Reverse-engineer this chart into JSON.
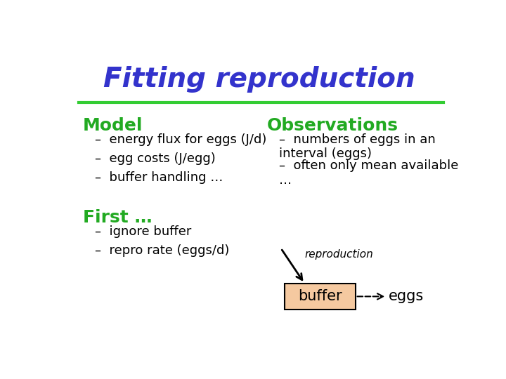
{
  "title": "Fitting reproduction",
  "title_color": "#3333cc",
  "title_fontstyle": "italic",
  "title_fontsize": 28,
  "line_color": "#33cc33",
  "model_header": "Model",
  "model_header_color": "#22aa22",
  "model_header_fontsize": 18,
  "model_items": [
    "energy flux for eggs (J/d)",
    "egg costs (J/egg)",
    "buffer handling …"
  ],
  "obs_header": "Observations",
  "obs_header_color": "#22aa22",
  "obs_header_fontsize": 18,
  "obs_items": [
    "numbers of eggs in an\ninterval (eggs)",
    "often only mean available\n…"
  ],
  "first_header": "First …",
  "first_header_color": "#22aa22",
  "first_header_fontsize": 18,
  "first_items": [
    "ignore buffer",
    "repro rate (eggs/d)"
  ],
  "repro_label": "reproduction",
  "buffer_label": "buffer",
  "eggs_label": "eggs",
  "buffer_box_color": "#f5c9a0",
  "bullet": "–",
  "item_fontsize": 13,
  "background_color": "#ffffff"
}
